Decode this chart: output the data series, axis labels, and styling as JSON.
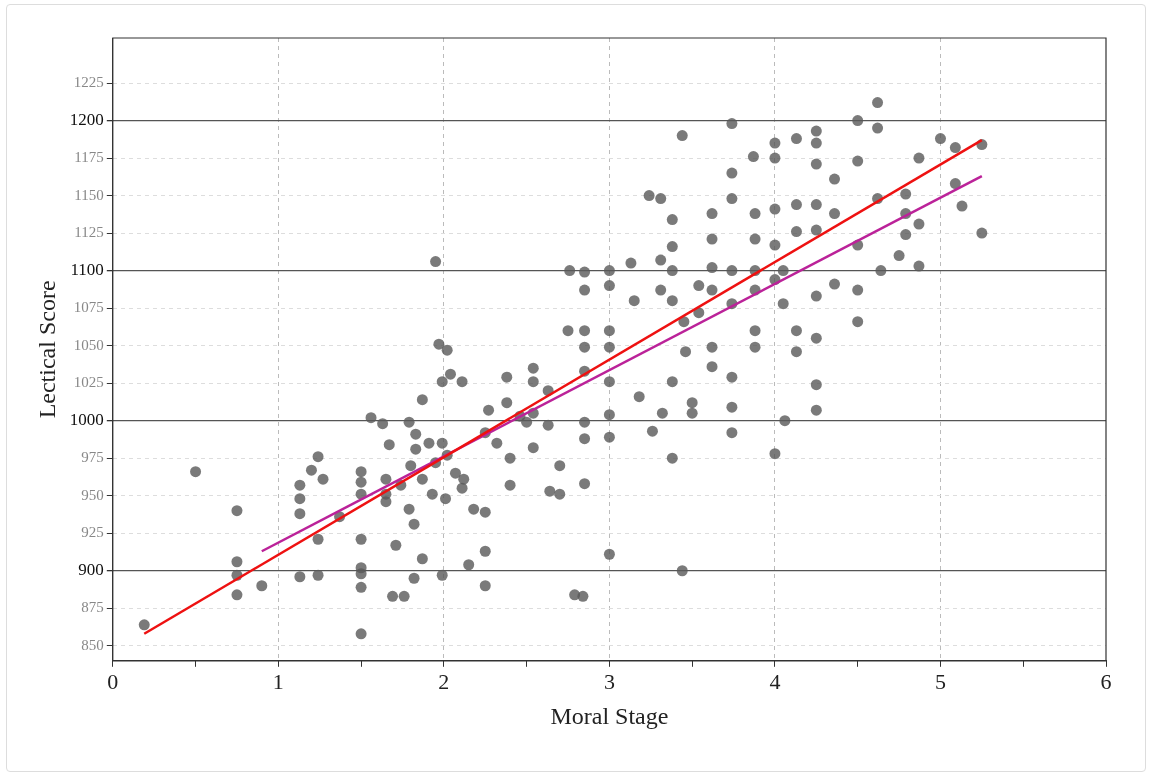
{
  "chart_data": {
    "type": "scatter",
    "xlabel": "Moral Stage",
    "ylabel": "Lectical Score",
    "xlim": [
      0,
      6
    ],
    "ylim": [
      840,
      1255
    ],
    "xticks": [
      0,
      {
        "value": 0.5,
        "label": null
      },
      1,
      {
        "value": 1.5,
        "label": null
      },
      2,
      {
        "value": 2.5,
        "label": null
      },
      3,
      {
        "value": 3.5,
        "label": null
      },
      4,
      {
        "value": 4.5,
        "label": null
      },
      5,
      {
        "value": 5.5,
        "label": null
      },
      6
    ],
    "yticks": [
      850,
      875,
      900,
      925,
      950,
      975,
      1000,
      1025,
      1050,
      1075,
      1100,
      1125,
      1150,
      1175,
      1200,
      1225
    ],
    "grid": true,
    "legend": false,
    "marker": "circle",
    "series": [
      {
        "color": "#595959",
        "x": [
          0.19,
          0.5,
          0.75,
          0.75,
          0.75,
          0.75,
          0.9,
          1.13,
          1.13,
          1.13,
          1.13,
          1.2,
          1.24,
          1.24,
          1.24,
          1.27,
          1.37,
          1.5,
          1.5,
          1.5,
          1.5,
          1.5,
          1.5,
          1.5,
          1.5,
          1.56,
          1.63,
          1.65,
          1.65,
          1.65,
          1.67,
          1.69,
          1.71,
          1.74,
          1.76,
          1.79,
          1.79,
          1.8,
          1.82,
          1.82,
          1.83,
          1.83,
          1.87,
          1.87,
          1.87,
          1.91,
          1.93,
          1.95,
          1.95,
          1.97,
          1.99,
          1.99,
          1.99,
          2.01,
          2.02,
          2.02,
          2.04,
          2.07,
          2.11,
          2.11,
          2.12,
          2.15,
          2.18,
          2.25,
          2.25,
          2.25,
          2.25,
          2.27,
          2.32,
          2.38,
          2.38,
          2.4,
          2.4,
          2.46,
          2.5,
          2.54,
          2.54,
          2.54,
          2.54,
          2.63,
          2.63,
          2.64,
          2.7,
          2.7,
          2.75,
          2.76,
          2.79,
          2.85,
          2.85,
          2.85,
          2.85,
          2.85,
          2.85,
          2.85,
          2.85,
          2.84,
          3.0,
          3.0,
          3.0,
          3.0,
          3.0,
          3.0,
          3.0,
          3.0,
          3.13,
          3.15,
          3.18,
          3.24,
          3.26,
          3.31,
          3.31,
          3.31,
          3.32,
          3.38,
          3.38,
          3.38,
          3.38,
          3.38,
          3.38,
          3.44,
          3.44,
          3.45,
          3.46,
          3.5,
          3.5,
          3.54,
          3.54,
          3.62,
          3.62,
          3.62,
          3.62,
          3.62,
          3.62,
          3.74,
          3.74,
          3.74,
          3.74,
          3.74,
          3.74,
          3.74,
          3.74,
          3.87,
          3.88,
          3.88,
          3.88,
          3.88,
          3.88,
          3.88,
          4.0,
          4.0,
          4.0,
          4.0,
          4.0,
          4.0,
          4.05,
          4.05,
          4.06,
          4.13,
          4.13,
          4.13,
          4.13,
          4.13,
          4.25,
          4.25,
          4.25,
          4.25,
          4.25,
          4.25,
          4.25,
          4.25,
          4.25,
          4.36,
          4.36,
          4.36,
          4.5,
          4.5,
          4.5,
          4.5,
          4.5,
          4.62,
          4.62,
          4.62,
          4.64,
          4.75,
          4.87,
          4.87,
          4.87,
          4.79,
          4.79,
          4.79,
          5.0,
          5.09,
          5.09,
          5.13,
          5.25,
          5.25
        ],
        "values": [
          864,
          966,
          940,
          906,
          897,
          884,
          890,
          957,
          948,
          938,
          896,
          967,
          976,
          921,
          897,
          961,
          936,
          966,
          959,
          951,
          921,
          902,
          898,
          889,
          858,
          1002,
          998,
          961,
          951,
          946,
          984,
          883,
          917,
          957,
          883,
          999,
          941,
          970,
          895,
          931,
          981,
          991,
          1014,
          908,
          961,
          985,
          951,
          972,
          1106,
          1051,
          1026,
          985,
          897,
          948,
          1047,
          977,
          1031,
          965,
          1026,
          955,
          961,
          904,
          941,
          939,
          913,
          890,
          992,
          1007,
          985,
          1029,
          1012,
          975,
          957,
          1003,
          999,
          1035,
          1026,
          982,
          1005,
          1020,
          997,
          953,
          970,
          951,
          1060,
          1100,
          884,
          1099,
          1087,
          1060,
          1049,
          1033,
          999,
          988,
          958,
          883,
          1100,
          1090,
          1060,
          1049,
          1026,
          1004,
          989,
          911,
          1105,
          1080,
          1016,
          1150,
          993,
          1148,
          1107,
          1087,
          1005,
          1134,
          1116,
          1100,
          1080,
          1026,
          975,
          1190,
          900,
          1066,
          1046,
          1012,
          1005,
          1090,
          1072,
          1138,
          1121,
          1102,
          1087,
          1049,
          1036,
          1198,
          1165,
          1148,
          1100,
          1078,
          1029,
          1009,
          992,
          1176,
          1138,
          1121,
          1100,
          1087,
          1060,
          1049,
          1185,
          1175,
          1141,
          1117,
          1094,
          978,
          1100,
          1078,
          1000,
          1188,
          1144,
          1126,
          1060,
          1046,
          1193,
          1185,
          1171,
          1144,
          1127,
          1083,
          1055,
          1007,
          1024,
          1161,
          1138,
          1091,
          1200,
          1173,
          1117,
          1066,
          1087,
          1212,
          1195,
          1148,
          1100,
          1110,
          1175,
          1131,
          1103,
          1151,
          1138,
          1124,
          1188,
          1182,
          1158,
          1143,
          1184,
          1125
        ]
      },
      {
        "type": "line",
        "color": "#ee1111",
        "marker": "none",
        "x": [
          0.19,
          5.25
        ],
        "values": [
          858,
          1187
        ]
      },
      {
        "type": "line",
        "color": "#bb2299",
        "marker": "none",
        "x": [
          0.9,
          5.25
        ],
        "values": [
          913,
          1163
        ]
      }
    ]
  }
}
